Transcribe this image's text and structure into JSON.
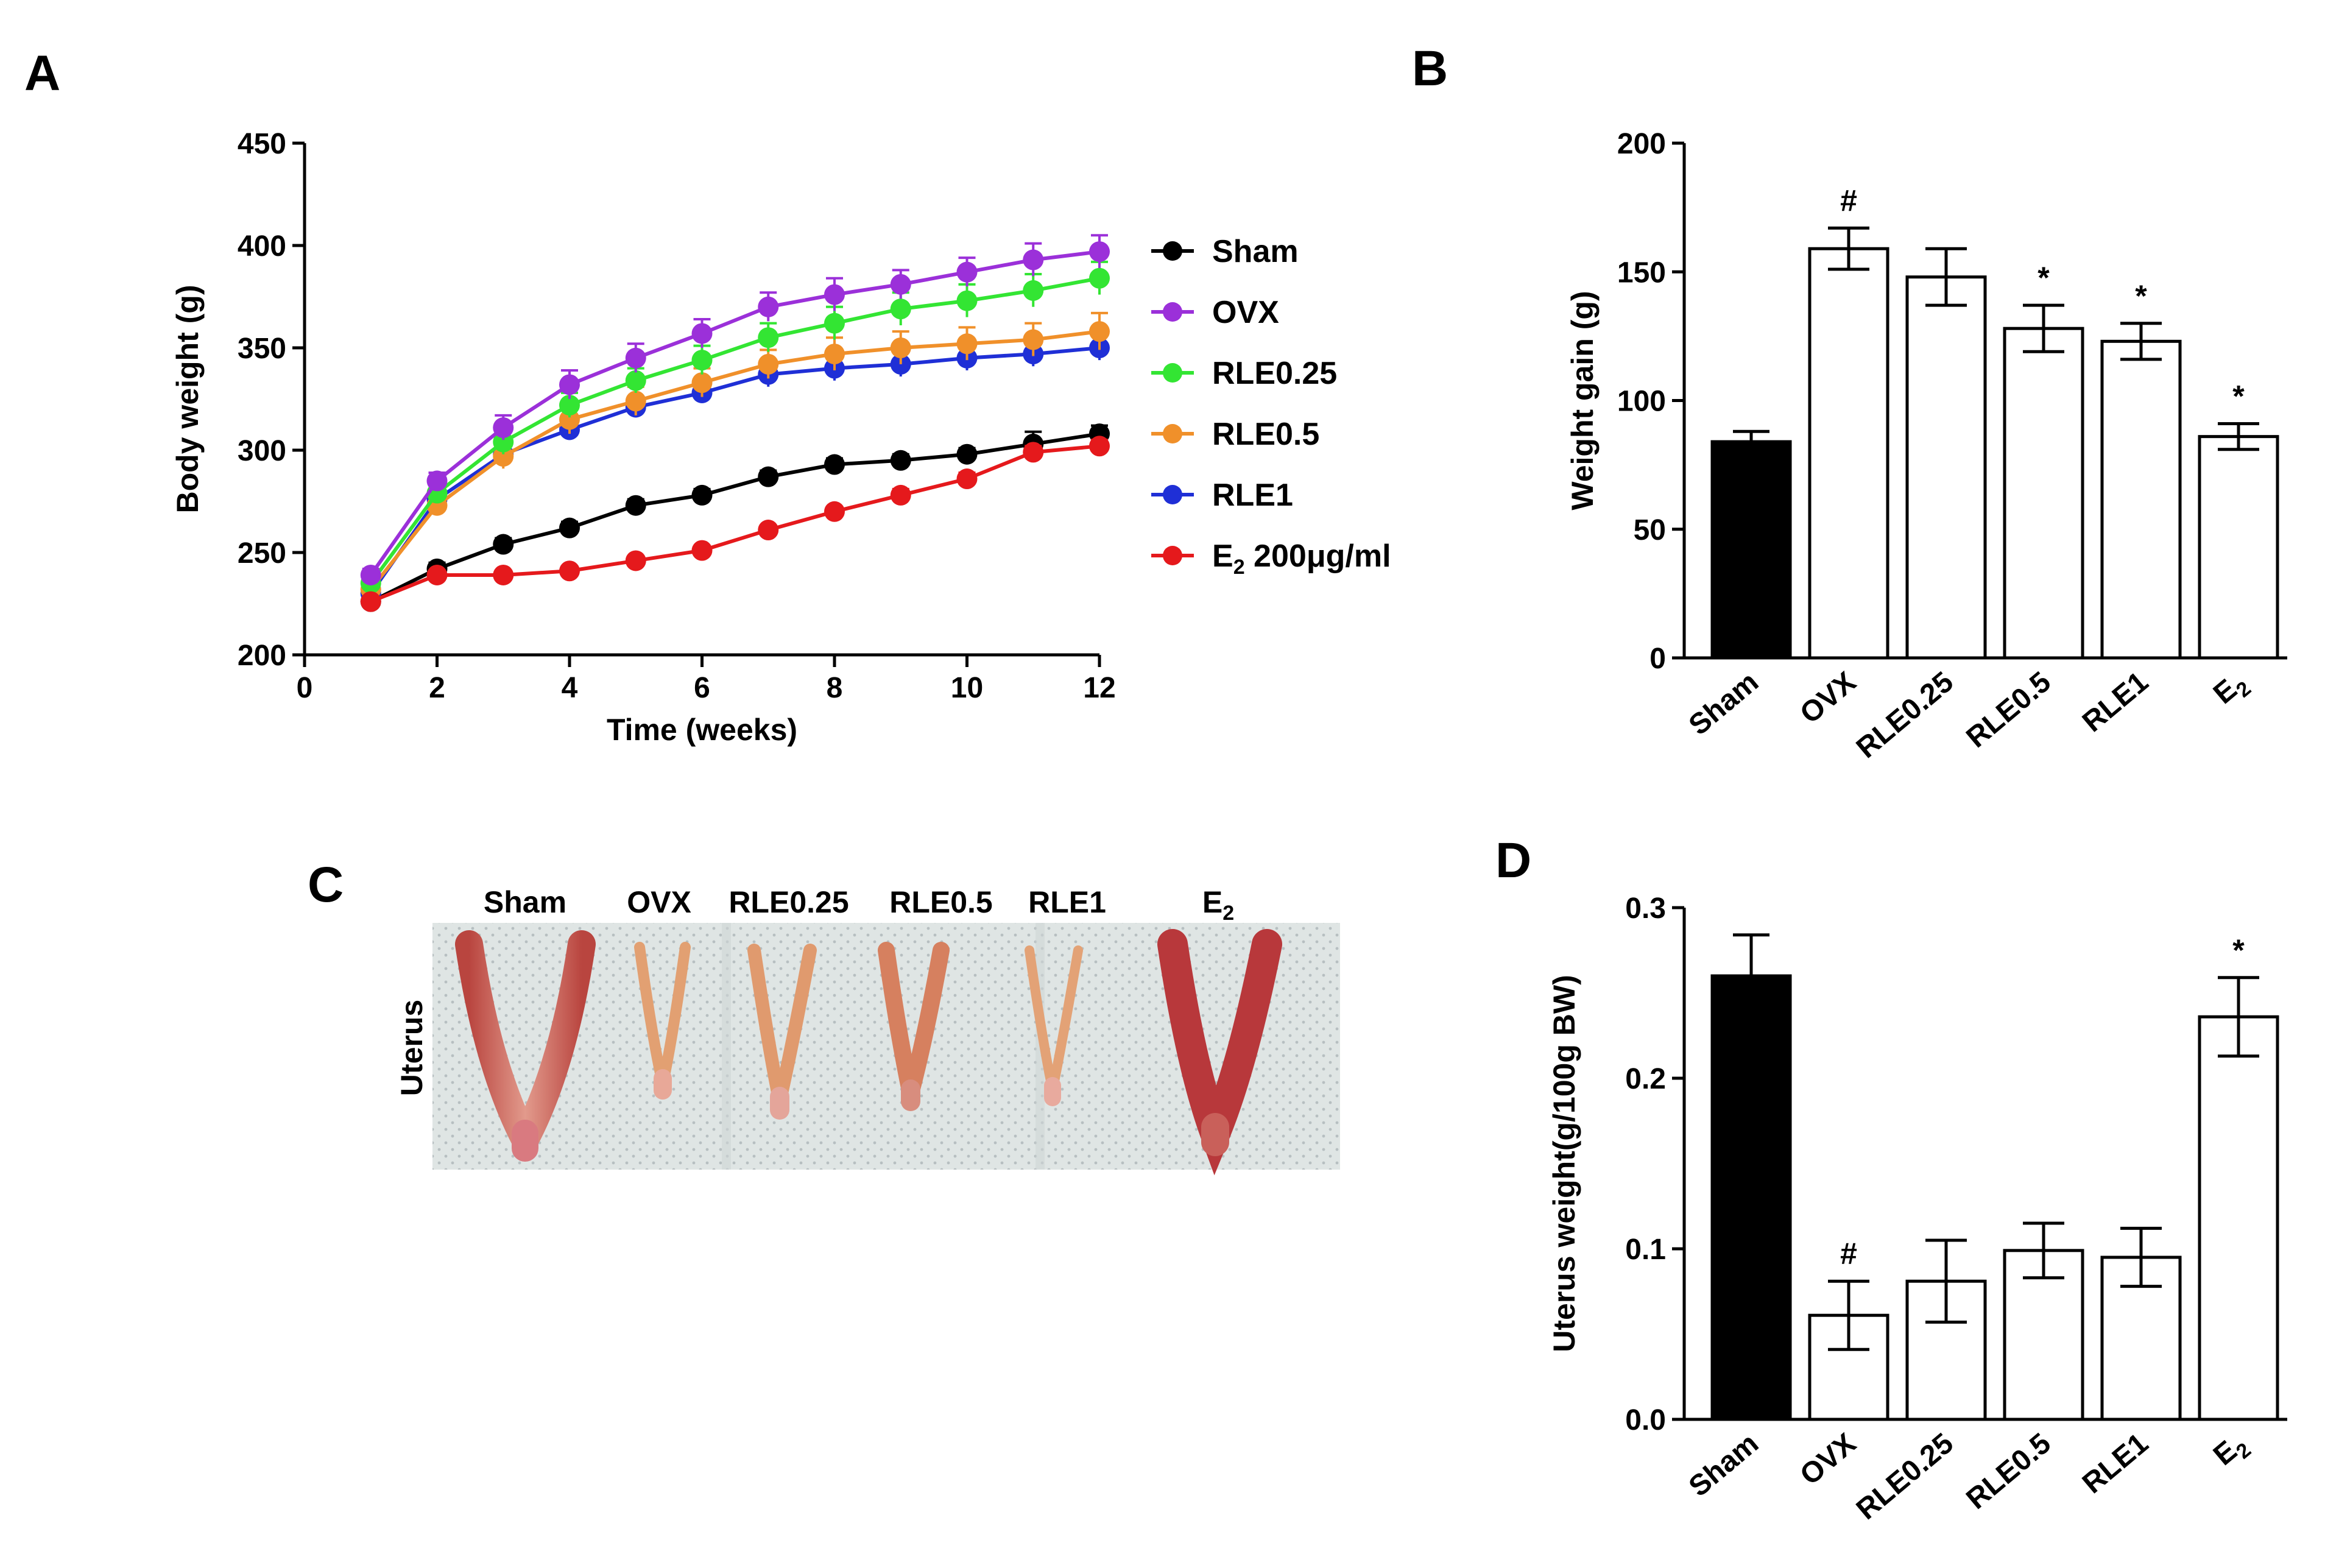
{
  "figure": {
    "panels": {
      "A": "A",
      "B": "B",
      "C": "C",
      "D": "D"
    }
  },
  "colors": {
    "Sham": "#000000",
    "OVX": "#9b30d9",
    "RLE0.25": "#33e533",
    "RLE0.5": "#f0902a",
    "RLE1": "#1f2fd6",
    "E2": "#e5191c",
    "bar_filled": "#000000",
    "bar_open": "#ffffff"
  },
  "photo": {
    "side_label": "Uterus",
    "group_labels": [
      "Sham",
      "OVX",
      "RLE0.25",
      "RLE0.5",
      "RLE1",
      "E2"
    ],
    "tissue_color": "#c9605a"
  },
  "chart_data": [
    {
      "id": "A",
      "type": "line",
      "title": "",
      "xlabel": "Time (weeks)",
      "ylabel": "Body weight (g)",
      "xlim": [
        0,
        12
      ],
      "ylim": [
        200,
        450
      ],
      "xticks": [
        "0",
        "2",
        "4",
        "6",
        "8",
        "10",
        "12"
      ],
      "yticks": [
        "200",
        "250",
        "300",
        "350",
        "400",
        "450"
      ],
      "x": [
        1,
        2,
        3,
        4,
        5,
        6,
        7,
        8,
        9,
        10,
        11,
        12
      ],
      "legend_position": "right",
      "series": [
        {
          "name": "Sham",
          "legend_label": "Sham",
          "values": [
            226,
            242,
            254,
            262,
            273,
            278,
            287,
            293,
            295,
            298,
            303,
            308
          ],
          "error": [
            2,
            3,
            3,
            3,
            3,
            3,
            3,
            3,
            3,
            3,
            6,
            4
          ]
        },
        {
          "name": "OVX",
          "legend_label": "OVX",
          "values": [
            239,
            285,
            311,
            332,
            345,
            357,
            370,
            376,
            381,
            387,
            393,
            397
          ],
          "error": [
            3,
            4,
            6,
            7,
            7,
            7,
            7,
            8,
            7,
            7,
            8,
            8
          ]
        },
        {
          "name": "RLE0.25",
          "legend_label": "RLE0.25",
          "values": [
            235,
            279,
            304,
            322,
            334,
            344,
            355,
            362,
            369,
            373,
            378,
            384
          ],
          "error": [
            3,
            4,
            6,
            6,
            6,
            7,
            7,
            8,
            8,
            8,
            8,
            8
          ]
        },
        {
          "name": "RLE0.5",
          "legend_label": "RLE0.5",
          "values": [
            232,
            273,
            297,
            315,
            324,
            333,
            342,
            347,
            350,
            352,
            354,
            358
          ],
          "error": [
            3,
            5,
            6,
            7,
            7,
            7,
            7,
            8,
            8,
            8,
            8,
            9
          ]
        },
        {
          "name": "RLE1",
          "legend_label": "RLE1",
          "values": [
            230,
            276,
            298,
            310,
            321,
            328,
            337,
            340,
            342,
            345,
            347,
            350
          ],
          "error": [
            3,
            4,
            5,
            5,
            5,
            5,
            6,
            6,
            6,
            6,
            6,
            6
          ]
        },
        {
          "name": "E2",
          "legend_label": "E",
          "legend_sub": "2",
          "legend_suffix": " 200μg/ml",
          "values": [
            226,
            239,
            239,
            241,
            246,
            251,
            261,
            270,
            278,
            286,
            299,
            302
          ],
          "error": [
            2,
            2,
            2,
            2,
            2,
            2,
            2,
            2,
            3,
            3,
            3,
            3
          ]
        }
      ]
    },
    {
      "id": "B",
      "type": "bar",
      "title": "",
      "xlabel": "",
      "ylabel": "Weight gain (g)",
      "ylim": [
        0,
        200
      ],
      "yticks": [
        "0",
        "50",
        "100",
        "150",
        "200"
      ],
      "categories": [
        "Sham",
        "OVX",
        "RLE0.25",
        "RLE0.5",
        "RLE1",
        "E"
      ],
      "category_subscripts": [
        "",
        "",
        "",
        "",
        "",
        "2"
      ],
      "values": [
        84,
        159,
        148,
        128,
        123,
        86
      ],
      "error": [
        4,
        8,
        11,
        9,
        7,
        5
      ],
      "annotations": [
        "",
        "#",
        "",
        "*",
        "*",
        "*"
      ]
    },
    {
      "id": "D",
      "type": "bar",
      "title": "",
      "xlabel": "",
      "ylabel": "Uterus weight(g/100g BW)",
      "ylim": [
        0.0,
        0.3
      ],
      "yticks": [
        "0.0",
        "0.1",
        "0.2",
        "0.3"
      ],
      "categories": [
        "Sham",
        "OVX",
        "RLE0.25",
        "RLE0.5",
        "RLE1",
        "E"
      ],
      "category_subscripts": [
        "",
        "",
        "",
        "",
        "",
        "2"
      ],
      "values": [
        0.26,
        0.061,
        0.081,
        0.099,
        0.095,
        0.236
      ],
      "error": [
        0.024,
        0.02,
        0.024,
        0.016,
        0.017,
        0.023
      ],
      "annotations": [
        "",
        "#",
        "",
        "",
        "",
        "*"
      ]
    }
  ]
}
